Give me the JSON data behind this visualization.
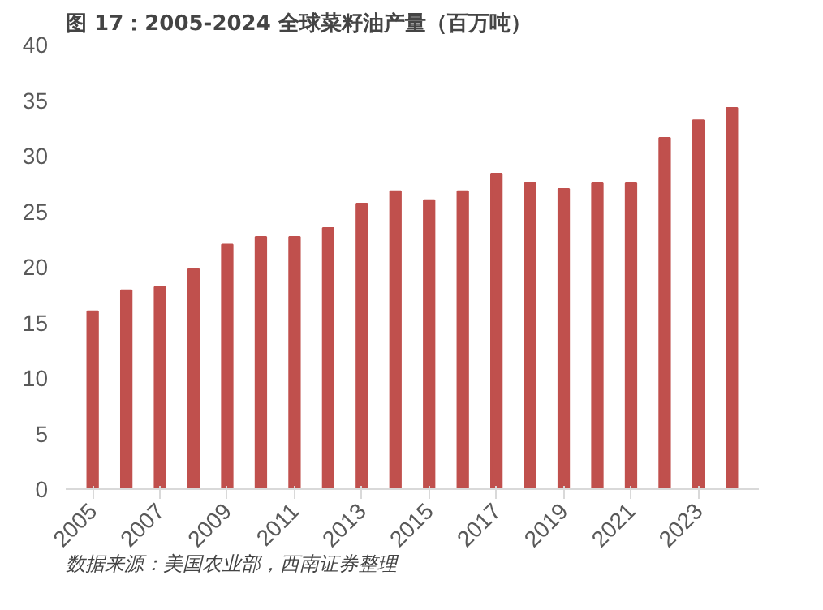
{
  "chart_data": {
    "type": "bar",
    "title": "图 17：2005-2024 全球菜籽油产量（百万吨）",
    "categories": [
      "2005",
      null,
      "2007",
      null,
      "2009",
      null,
      "2011",
      null,
      "2013",
      null,
      "2015",
      null,
      "2017",
      null,
      "2019",
      null,
      "2021",
      null,
      "2023",
      null
    ],
    "values": [
      16.0,
      17.9,
      18.2,
      19.8,
      22.0,
      22.7,
      22.7,
      23.5,
      25.7,
      26.8,
      26.0,
      26.8,
      28.4,
      27.6,
      27.0,
      27.6,
      27.6,
      31.6,
      33.2,
      34.3
    ],
    "color": "#c0504d",
    "ylim": [
      0,
      40
    ],
    "yticks": [
      0,
      5,
      10,
      15,
      20,
      25,
      30,
      35,
      40
    ],
    "grid": false,
    "annotations": [
      "数据来源：美国农业部，西南证券整理"
    ]
  }
}
